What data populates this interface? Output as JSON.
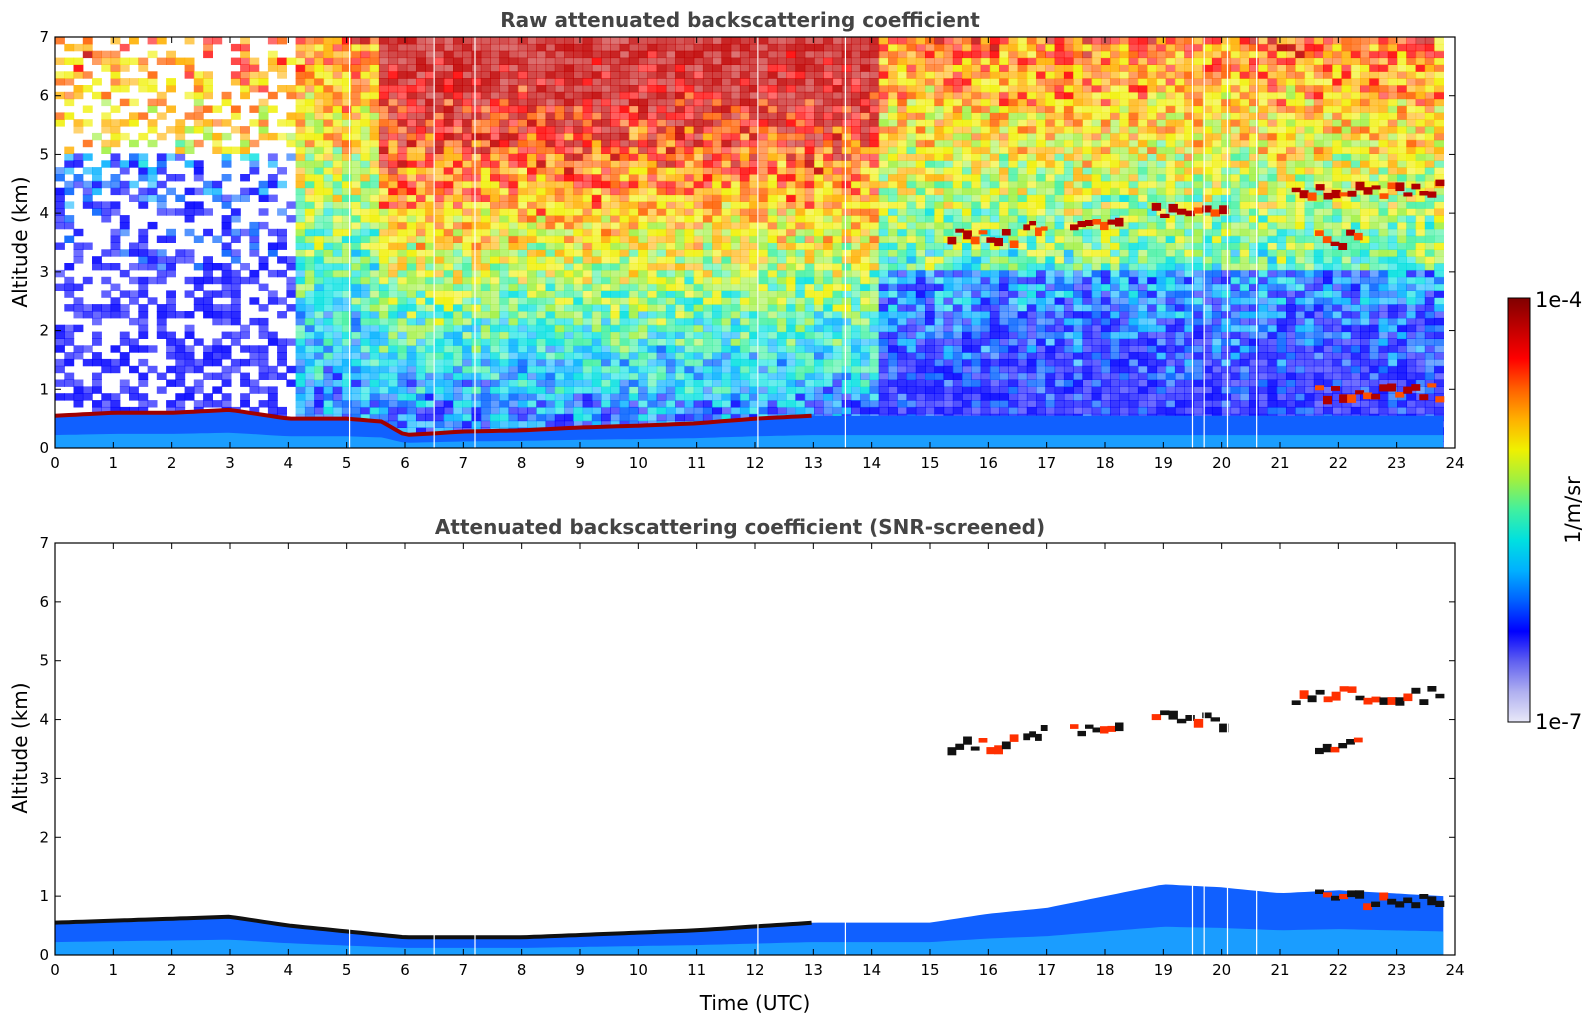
{
  "figure": {
    "colorbar": {
      "max_label": "1e-4",
      "min_label": "1e-7",
      "unit_label": "1/m/sr",
      "colormap": [
        "#e8e8f8",
        "#b0b0f0",
        "#6060f0",
        "#0000ff",
        "#0060ff",
        "#00b0ff",
        "#00e0e0",
        "#40f0a0",
        "#a0f040",
        "#f0f000",
        "#ffb000",
        "#ff6000",
        "#ff0000",
        "#c00000",
        "#800000"
      ]
    }
  },
  "chart_data": [
    {
      "type": "heatmap",
      "title": "Raw attenuated backscattering coefficient",
      "xlabel": "",
      "ylabel": "Altitude (km)",
      "xlim": [
        0,
        24
      ],
      "ylim": [
        0,
        7
      ],
      "xticks": [
        "0",
        "1",
        "2",
        "3",
        "4",
        "5",
        "6",
        "7",
        "8",
        "9",
        "10",
        "11",
        "12",
        "13",
        "14",
        "15",
        "16",
        "17",
        "18",
        "19",
        "20",
        "21",
        "22",
        "23",
        "24"
      ],
      "yticks": [
        "0",
        "1",
        "2",
        "3",
        "4",
        "5",
        "6",
        "7"
      ],
      "data_end_time": 23.8,
      "boundary_layer_top_km": [
        [
          0,
          0.55
        ],
        [
          1,
          0.6
        ],
        [
          2,
          0.6
        ],
        [
          3,
          0.65
        ],
        [
          4,
          0.5
        ],
        [
          5,
          0.5
        ],
        [
          5.6,
          0.45
        ],
        [
          6,
          0.22
        ],
        [
          7,
          0.28
        ],
        [
          8,
          0.3
        ],
        [
          9,
          0.35
        ],
        [
          10,
          0.38
        ],
        [
          11,
          0.42
        ],
        [
          12,
          0.5
        ],
        [
          13,
          0.55
        ]
      ],
      "cloud_layers": [
        {
          "start": 15.3,
          "end": 16.5,
          "altitude": 3.6
        },
        {
          "start": 16.6,
          "end": 17.0,
          "altitude": 3.8
        },
        {
          "start": 17.4,
          "end": 18.3,
          "altitude": 3.85
        },
        {
          "start": 18.8,
          "end": 20.1,
          "altitude": 4.0
        },
        {
          "start": 21.2,
          "end": 23.8,
          "altitude": 4.4
        },
        {
          "start": 21.6,
          "end": 22.4,
          "altitude": 3.55
        },
        {
          "start": 21.6,
          "end": 23.8,
          "altitude": 0.95
        }
      ]
    },
    {
      "type": "heatmap",
      "title": "Attenuated backscattering coefficient (SNR-screened)",
      "xlabel": "Time (UTC)",
      "ylabel": "Altitude (km)",
      "xlim": [
        0,
        24
      ],
      "ylim": [
        0,
        7
      ],
      "xticks": [
        "0",
        "1",
        "2",
        "3",
        "4",
        "5",
        "6",
        "7",
        "8",
        "9",
        "10",
        "11",
        "12",
        "13",
        "14",
        "15",
        "16",
        "17",
        "18",
        "19",
        "20",
        "21",
        "22",
        "23",
        "24"
      ],
      "yticks": [
        "0",
        "1",
        "2",
        "3",
        "4",
        "5",
        "6",
        "7"
      ],
      "data_end_time": 23.8,
      "boundary_layer_top_km": [
        [
          0,
          0.55
        ],
        [
          3,
          0.65
        ],
        [
          4,
          0.5
        ],
        [
          6,
          0.3
        ],
        [
          8,
          0.3
        ],
        [
          11,
          0.42
        ],
        [
          13,
          0.55
        ],
        [
          15,
          0.55
        ],
        [
          16,
          0.7
        ],
        [
          17,
          0.8
        ],
        [
          18,
          1.0
        ],
        [
          19,
          1.2
        ],
        [
          20,
          1.15
        ],
        [
          21,
          1.05
        ],
        [
          22,
          1.1
        ],
        [
          23.8,
          1.0
        ]
      ],
      "cloud_layers": [
        {
          "start": 15.3,
          "end": 16.5,
          "altitude": 3.6
        },
        {
          "start": 16.6,
          "end": 17.0,
          "altitude": 3.8
        },
        {
          "start": 17.4,
          "end": 18.3,
          "altitude": 3.85
        },
        {
          "start": 18.8,
          "end": 20.1,
          "altitude": 4.0
        },
        {
          "start": 21.2,
          "end": 23.8,
          "altitude": 4.4
        },
        {
          "start": 21.6,
          "end": 22.4,
          "altitude": 3.55
        },
        {
          "start": 21.6,
          "end": 23.8,
          "altitude": 0.95
        }
      ]
    }
  ]
}
